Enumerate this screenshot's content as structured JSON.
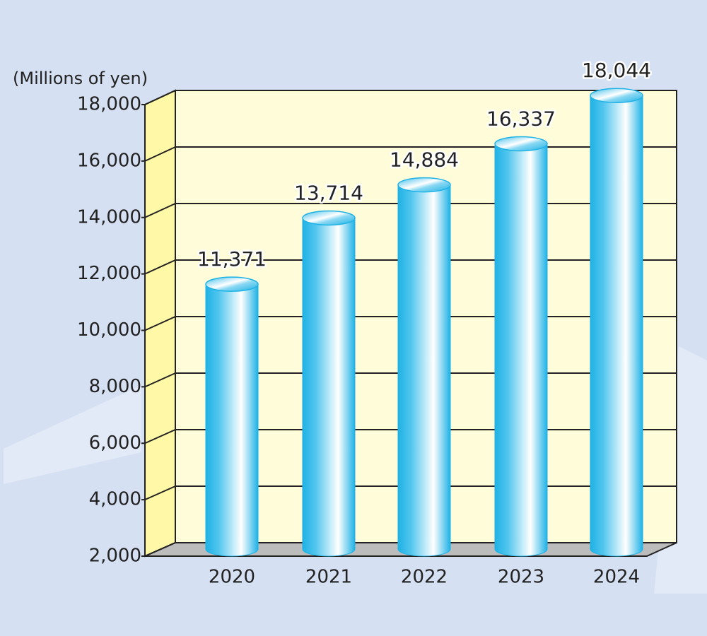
{
  "chart_data": {
    "type": "bar",
    "y_label": "(Millions of yen)",
    "categories": [
      "2020",
      "2021",
      "2022",
      "2023",
      "2024"
    ],
    "values": [
      11371,
      13714,
      14884,
      16337,
      18044
    ],
    "value_labels": [
      "11,371",
      "13,714",
      "14,884",
      "16,337",
      "18,044"
    ],
    "color": "#1fb2e6",
    "ylim": [
      2000,
      18000
    ],
    "yticks": [
      {
        "value": 2000,
        "label": "2,000"
      },
      {
        "value": 4000,
        "label": "4,000"
      },
      {
        "value": 6000,
        "label": "6,000"
      },
      {
        "value": 8000,
        "label": "8,000"
      },
      {
        "value": 10000,
        "label": "10,000"
      },
      {
        "value": 12000,
        "label": "12,000"
      },
      {
        "value": 14000,
        "label": "14,000"
      },
      {
        "value": 16000,
        "label": "16,000"
      },
      {
        "value": 18000,
        "label": "18,000"
      }
    ],
    "grid": true
  }
}
